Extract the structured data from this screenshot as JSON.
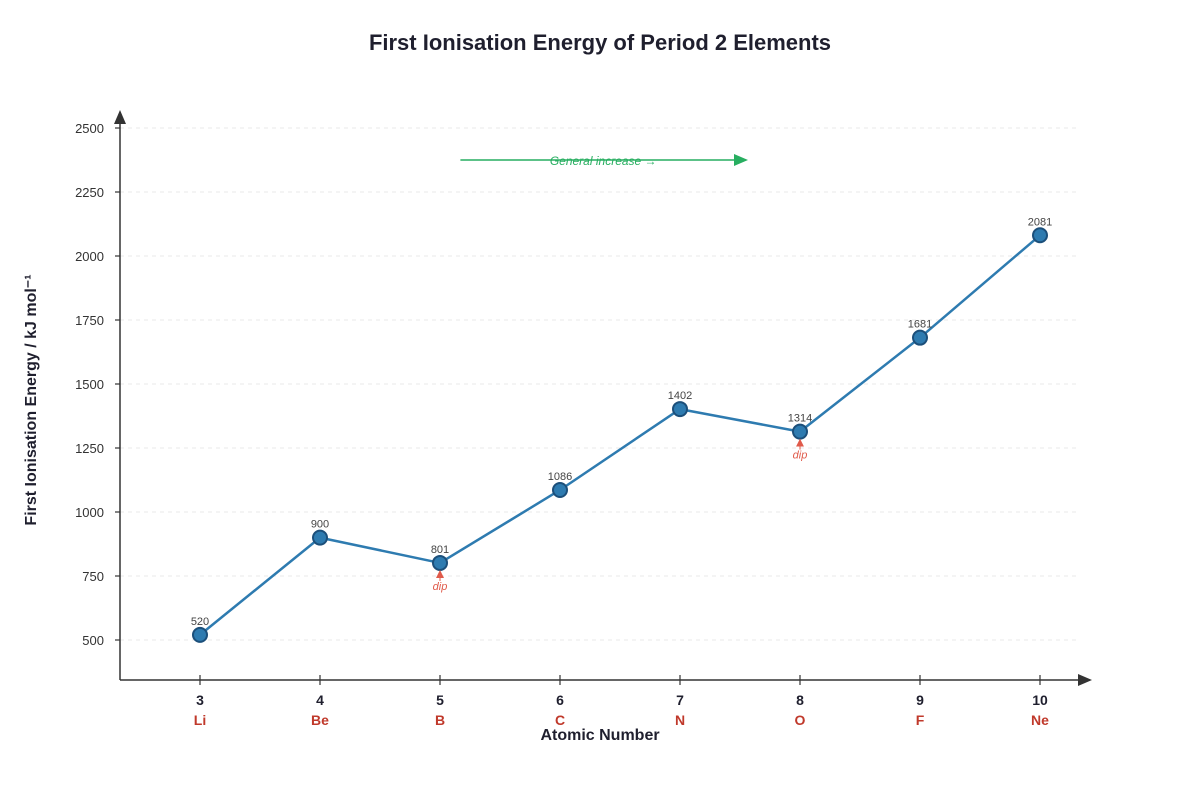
{
  "chart_data": {
    "type": "line",
    "title": "First Ionisation Energy of Period 2 Elements",
    "xlabel": "Atomic Number",
    "ylabel": "First Ionisation Energy / kJ mol⁻¹",
    "x": [
      3,
      4,
      5,
      6,
      7,
      8,
      9,
      10
    ],
    "symbols": [
      "Li",
      "Be",
      "B",
      "C",
      "N",
      "O",
      "F",
      "Ne"
    ],
    "series": [
      {
        "values": [
          520,
          900,
          801,
          1086,
          1402,
          1314,
          1681,
          2081
        ]
      }
    ],
    "yticks": [
      500,
      750,
      1000,
      1250,
      1500,
      1750,
      2000,
      2250,
      2500
    ],
    "ylim": [
      345,
      2500
    ],
    "xlim": [
      2.35,
      10.4
    ],
    "grid": true,
    "annotations": [
      {
        "x": 5,
        "text": "dip"
      },
      {
        "x": 8,
        "text": "dip"
      }
    ],
    "trend_annotation": {
      "text": "General increase →",
      "y": 2375,
      "x_start": 5.17,
      "x_end": 7.55
    }
  },
  "colors": {
    "line": "#2e7bb0",
    "marker_fill": "#2e7bb0",
    "marker_stroke": "#1c4f7a",
    "symbol_text": "#c0392b",
    "dip": "#e05a4a",
    "trend": "#27ae60",
    "axis": "#333333",
    "grid": "#e9e9e9"
  }
}
